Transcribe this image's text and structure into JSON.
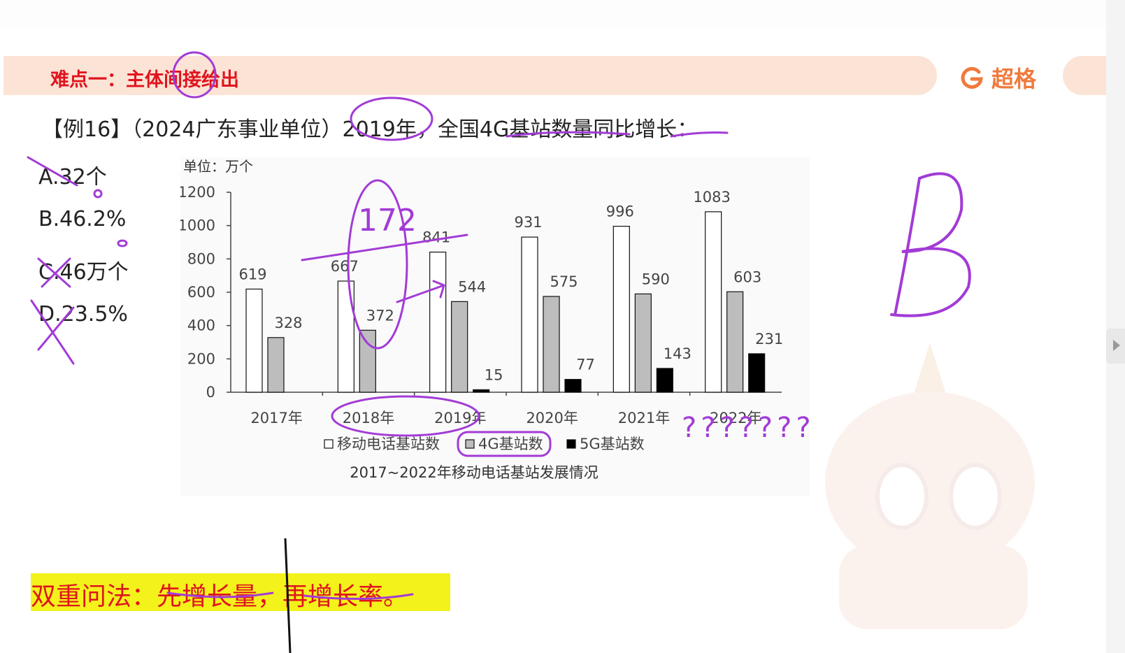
{
  "header": {
    "title": "难点一：主体间接给出",
    "brand": "超格"
  },
  "question": {
    "text": "【例16】（2024广东事业单位）2019年，全国4G基站数量同比增长：",
    "options": [
      {
        "label": "A.32个"
      },
      {
        "label": "B.46.2%"
      },
      {
        "label": "C.46万个"
      },
      {
        "label": "D.23.5%"
      }
    ]
  },
  "footer": {
    "text": "双重问法：先增长量，再增长率。"
  },
  "annotations": {
    "answer": "B",
    "note": "172",
    "marks": "???????"
  },
  "colors": {
    "accent_red": "#e0141e",
    "brand_orange": "#f07a3c",
    "highlight": "#f3f21b",
    "ink_purple": "#a23bd6"
  },
  "chart_data": {
    "type": "bar",
    "title": "2017~2022年移动电话基站发展情况",
    "unit_label": "单位：万个",
    "categories": [
      "2017年",
      "2018年",
      "2019年",
      "2020年",
      "2021年",
      "2022年"
    ],
    "series": [
      {
        "name": "移动电话基站数",
        "color": "#ffffff",
        "values": [
          619,
          667,
          841,
          931,
          996,
          1083
        ]
      },
      {
        "name": "4G基站数",
        "color": "#bdbdbd",
        "values": [
          328,
          372,
          544,
          575,
          590,
          603
        ]
      },
      {
        "name": "5G基站数",
        "color": "#000000",
        "values": [
          null,
          null,
          15,
          77,
          143,
          231
        ]
      }
    ],
    "ylim": [
      0,
      1200
    ],
    "yticks": [
      "0",
      "200",
      "400",
      "600",
      "800",
      "1000",
      "1200"
    ],
    "grid": false,
    "legend": "bottom"
  }
}
